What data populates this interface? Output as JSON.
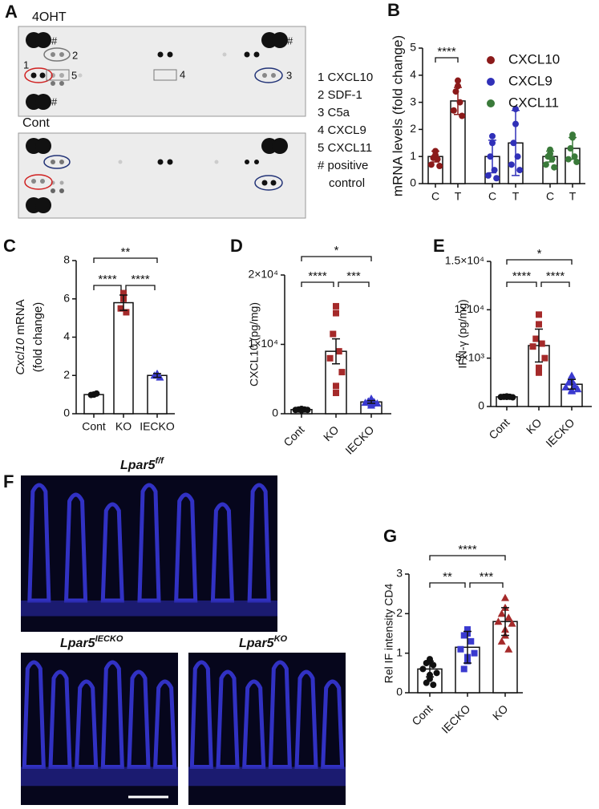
{
  "panel_a": {
    "label": "A",
    "top_label": "4OHT",
    "bottom_label": "Cont",
    "spot_labels": [
      "#",
      "2",
      "1",
      "5",
      "#",
      "4",
      "#",
      "3"
    ],
    "legend": [
      "1 CXCL10",
      "2 SDF-1",
      "3 C5a",
      "4 CXCL9",
      "5 CXCL11",
      "# positive",
      "control"
    ]
  },
  "panel_f": {
    "label": "F",
    "images": [
      {
        "name": "Lpar5",
        "sup": "f/f"
      },
      {
        "name": "Lpar5",
        "sup": "IECKO"
      },
      {
        "name": "Lpar5",
        "sup": "KO"
      }
    ]
  },
  "chart_data": [
    {
      "type": "bar",
      "panel_label": "B",
      "y_label": "mRNA levels (fold change)",
      "categories": [
        "C",
        "T",
        "C",
        "T",
        "C",
        "T"
      ],
      "ylim": [
        0,
        5
      ],
      "yticks": [
        0,
        1,
        2,
        3,
        4,
        5
      ],
      "series": [
        {
          "name": "CXCL10",
          "color": "#8b1a1a",
          "values": [
            1.0,
            3.05,
            null,
            null,
            null,
            null
          ],
          "errors": [
            0.2,
            0.5,
            null,
            null,
            null,
            null
          ],
          "points": [
            [
              1.2,
              1.05,
              0.95,
              0.9,
              0.7,
              0.65
            ],
            [
              3.8,
              3.6,
              3.4,
              3.0,
              2.7,
              2.5
            ],
            null,
            null,
            null,
            null
          ]
        },
        {
          "name": "CXCL9",
          "color": "#3030b8",
          "values": [
            null,
            null,
            1.0,
            1.5,
            null,
            null
          ],
          "errors": [
            null,
            null,
            0.6,
            1.2,
            null,
            null
          ],
          "points": [
            null,
            null,
            [
              1.75,
              1.5,
              1.0,
              0.5,
              0.3,
              0.2
            ],
            [
              2.75,
              2.2,
              1.5,
              1.0,
              0.7,
              0.5
            ],
            null,
            null
          ]
        },
        {
          "name": "CXCL11",
          "color": "#3a7a3a",
          "values": [
            null,
            null,
            null,
            null,
            1.0,
            1.3
          ],
          "errors": [
            null,
            null,
            null,
            null,
            0.2,
            0.4
          ],
          "points": [
            null,
            null,
            null,
            null,
            [
              1.25,
              1.1,
              1.0,
              0.9,
              0.7,
              0.6
            ],
            [
              1.8,
              1.7,
              1.3,
              1.0,
              0.9,
              0.8
            ]
          ]
        }
      ],
      "significance": [
        {
          "from": 0,
          "to": 1,
          "label": "****"
        }
      ]
    },
    {
      "type": "bar",
      "panel_label": "C",
      "y_label_italic": "Cxcl10",
      "y_label": "mRNA",
      "y_label_2": "(fold change)",
      "categories": [
        "Cont",
        "KO",
        "IECKO"
      ],
      "values": [
        1.0,
        5.8,
        2.0
      ],
      "errors": [
        0.05,
        0.4,
        0.1
      ],
      "points": [
        [
          1.0,
          1.0,
          0.98,
          1.05
        ],
        [
          6.3,
          6.0,
          5.5,
          5.3
        ],
        [
          2.1,
          2.0,
          2.0,
          1.9
        ]
      ],
      "colors": [
        "#111111",
        "#a52a2a",
        "#3a3acf"
      ],
      "markers": [
        "circle",
        "square",
        "triangle"
      ],
      "ylim": [
        0,
        8
      ],
      "yticks": [
        0,
        2,
        4,
        6,
        8
      ],
      "significance": [
        {
          "from": 0,
          "to": 2,
          "label": "**"
        },
        {
          "from": 0,
          "to": 1,
          "label": "****"
        },
        {
          "from": 1,
          "to": 2,
          "label": "****"
        }
      ]
    },
    {
      "type": "bar",
      "panel_label": "D",
      "y_label": "CXCL10  (pg/mg)",
      "categories": [
        "Cont",
        "KO",
        "IECKO"
      ],
      "values": [
        600,
        9000,
        1700
      ],
      "errors": [
        100,
        1800,
        200
      ],
      "points": [
        [
          700,
          650,
          600,
          600,
          550,
          550,
          500,
          500
        ],
        [
          15500,
          14500,
          11500,
          9000,
          8000,
          6000,
          4000,
          3000
        ],
        [
          2200,
          2000,
          1800,
          1700,
          1600,
          1500,
          1400,
          1200
        ]
      ],
      "colors": [
        "#111111",
        "#a52a2a",
        "#3a3acf"
      ],
      "markers": [
        "circle",
        "square",
        "triangle"
      ],
      "ylim": [
        0,
        20000
      ],
      "yticks": [
        0,
        {
          "value": 10000,
          "label": "1×10⁴"
        },
        {
          "value": 20000,
          "label": "2×10⁴"
        }
      ],
      "significance": [
        {
          "from": 0,
          "to": 2,
          "label": "*"
        },
        {
          "from": 0,
          "to": 1,
          "label": "****"
        },
        {
          "from": 1,
          "to": 2,
          "label": "***"
        }
      ]
    },
    {
      "type": "bar",
      "panel_label": "E",
      "y_label": "IFN-γ (pg/mg)",
      "categories": [
        "Cont",
        "KO",
        "IECKO"
      ],
      "values": [
        1000,
        6300,
        2300
      ],
      "errors": [
        50,
        1700,
        500
      ],
      "points": [
        [
          1050,
          1000,
          1000,
          1000,
          980,
          950,
          1000,
          1020
        ],
        [
          9500,
          8500,
          7000,
          6500,
          6200,
          5000,
          4000,
          3500
        ],
        [
          3200,
          2700,
          2500,
          2200,
          2000,
          1800,
          1700,
          1600
        ]
      ],
      "colors": [
        "#111111",
        "#a52a2a",
        "#3a3acf"
      ],
      "markers": [
        "circle",
        "square",
        "triangle"
      ],
      "ylim": [
        0,
        15000
      ],
      "yticks": [
        0,
        {
          "value": 5000,
          "label": "5×10³"
        },
        {
          "value": 10000,
          "label": "1×10⁴"
        },
        {
          "value": 15000,
          "label": "1.5×10⁴"
        }
      ],
      "significance": [
        {
          "from": 0,
          "to": 2,
          "label": "*"
        },
        {
          "from": 0,
          "to": 1,
          "label": "****"
        },
        {
          "from": 1,
          "to": 2,
          "label": "****"
        }
      ]
    },
    {
      "type": "bar",
      "panel_label": "G",
      "y_label": "Rel IF intensity CD4",
      "categories": [
        "Cont",
        "IECKO",
        "KO"
      ],
      "values": [
        0.6,
        1.15,
        1.8
      ],
      "errors": [
        0.2,
        0.4,
        0.35
      ],
      "points": [
        [
          0.85,
          0.8,
          0.75,
          0.7,
          0.6,
          0.5,
          0.45,
          0.35,
          0.25,
          0.2
        ],
        [
          1.6,
          1.5,
          1.45,
          1.3,
          1.1,
          1.0,
          0.9,
          0.8,
          0.6
        ],
        [
          2.4,
          2.15,
          2.0,
          1.9,
          1.8,
          1.75,
          1.6,
          1.45,
          1.3,
          1.1
        ]
      ],
      "colors": [
        "#111111",
        "#3a3acf",
        "#a52a2a"
      ],
      "markers": [
        "circle",
        "square",
        "triangle"
      ],
      "ylim": [
        0,
        3
      ],
      "yticks": [
        0,
        1,
        2,
        3
      ],
      "significance": [
        {
          "from": 0,
          "to": 2,
          "label": "****"
        },
        {
          "from": 0,
          "to": 1,
          "label": "**"
        },
        {
          "from": 1,
          "to": 2,
          "label": "***"
        }
      ]
    }
  ]
}
